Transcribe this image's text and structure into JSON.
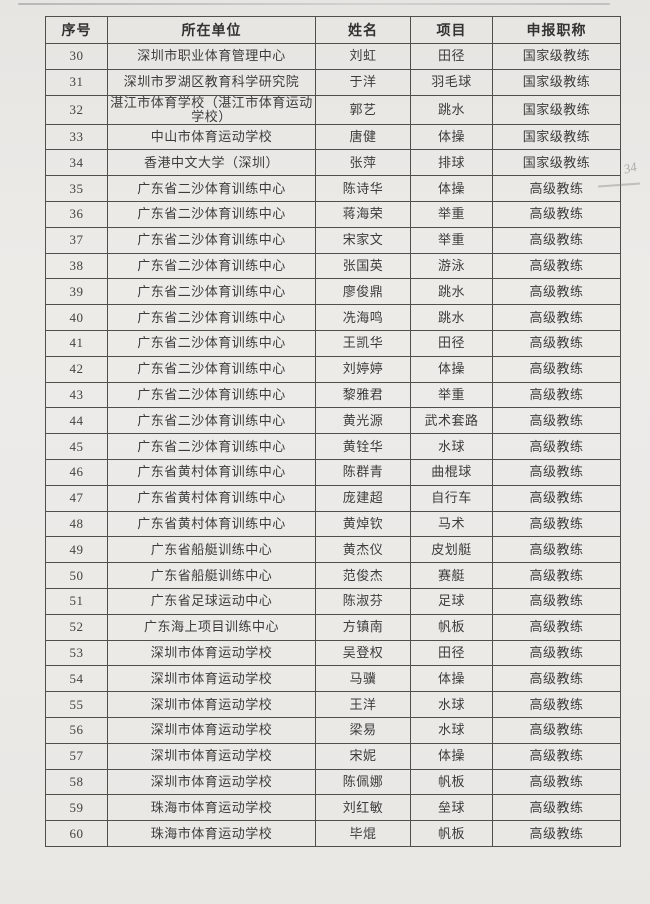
{
  "colors": {
    "paper": "#eae8e5",
    "ink": "#3e3c3a",
    "border": "#514f4c"
  },
  "annotations": {
    "handwritten_mark": "34"
  },
  "table": {
    "columns": [
      {
        "key": "seq",
        "label": "序号"
      },
      {
        "key": "unit",
        "label": "所在单位"
      },
      {
        "key": "name",
        "label": "姓名"
      },
      {
        "key": "sport",
        "label": "项目"
      },
      {
        "key": "title",
        "label": "申报职称"
      }
    ],
    "rows": [
      {
        "seq": "30",
        "unit": "深圳市职业体育管理中心",
        "name": "刘虹",
        "sport": "田径",
        "title": "国家级教练"
      },
      {
        "seq": "31",
        "unit": "深圳市罗湖区教育科学研究院",
        "name": "于洋",
        "sport": "羽毛球",
        "title": "国家级教练"
      },
      {
        "seq": "32",
        "unit": "湛江市体育学校（湛江市体育运动学校）",
        "name": "郭艺",
        "sport": "跳水",
        "title": "国家级教练"
      },
      {
        "seq": "33",
        "unit": "中山市体育运动学校",
        "name": "唐健",
        "sport": "体操",
        "title": "国家级教练"
      },
      {
        "seq": "34",
        "unit": "香港中文大学（深圳）",
        "name": "张萍",
        "sport": "排球",
        "title": "国家级教练"
      },
      {
        "seq": "35",
        "unit": "广东省二沙体育训练中心",
        "name": "陈诗华",
        "sport": "体操",
        "title": "高级教练"
      },
      {
        "seq": "36",
        "unit": "广东省二沙体育训练中心",
        "name": "蒋海荣",
        "sport": "举重",
        "title": "高级教练"
      },
      {
        "seq": "37",
        "unit": "广东省二沙体育训练中心",
        "name": "宋家文",
        "sport": "举重",
        "title": "高级教练"
      },
      {
        "seq": "38",
        "unit": "广东省二沙体育训练中心",
        "name": "张国英",
        "sport": "游泳",
        "title": "高级教练"
      },
      {
        "seq": "39",
        "unit": "广东省二沙体育训练中心",
        "name": "廖俊鼎",
        "sport": "跳水",
        "title": "高级教练"
      },
      {
        "seq": "40",
        "unit": "广东省二沙体育训练中心",
        "name": "冼海鸣",
        "sport": "跳水",
        "title": "高级教练"
      },
      {
        "seq": "41",
        "unit": "广东省二沙体育训练中心",
        "name": "王凯华",
        "sport": "田径",
        "title": "高级教练"
      },
      {
        "seq": "42",
        "unit": "广东省二沙体育训练中心",
        "name": "刘婷婷",
        "sport": "体操",
        "title": "高级教练"
      },
      {
        "seq": "43",
        "unit": "广东省二沙体育训练中心",
        "name": "黎雅君",
        "sport": "举重",
        "title": "高级教练"
      },
      {
        "seq": "44",
        "unit": "广东省二沙体育训练中心",
        "name": "黄光源",
        "sport": "武术套路",
        "title": "高级教练"
      },
      {
        "seq": "45",
        "unit": "广东省二沙体育训练中心",
        "name": "黄铨华",
        "sport": "水球",
        "title": "高级教练"
      },
      {
        "seq": "46",
        "unit": "广东省黄村体育训练中心",
        "name": "陈群青",
        "sport": "曲棍球",
        "title": "高级教练"
      },
      {
        "seq": "47",
        "unit": "广东省黄村体育训练中心",
        "name": "庞建超",
        "sport": "自行车",
        "title": "高级教练"
      },
      {
        "seq": "48",
        "unit": "广东省黄村体育训练中心",
        "name": "黄焯钦",
        "sport": "马术",
        "title": "高级教练"
      },
      {
        "seq": "49",
        "unit": "广东省船艇训练中心",
        "name": "黄杰仪",
        "sport": "皮划艇",
        "title": "高级教练"
      },
      {
        "seq": "50",
        "unit": "广东省船艇训练中心",
        "name": "范俊杰",
        "sport": "赛艇",
        "title": "高级教练"
      },
      {
        "seq": "51",
        "unit": "广东省足球运动中心",
        "name": "陈淑芬",
        "sport": "足球",
        "title": "高级教练"
      },
      {
        "seq": "52",
        "unit": "广东海上项目训练中心",
        "name": "方镇南",
        "sport": "帆板",
        "title": "高级教练"
      },
      {
        "seq": "53",
        "unit": "深圳市体育运动学校",
        "name": "吴登权",
        "sport": "田径",
        "title": "高级教练"
      },
      {
        "seq": "54",
        "unit": "深圳市体育运动学校",
        "name": "马骥",
        "sport": "体操",
        "title": "高级教练"
      },
      {
        "seq": "55",
        "unit": "深圳市体育运动学校",
        "name": "王洋",
        "sport": "水球",
        "title": "高级教练"
      },
      {
        "seq": "56",
        "unit": "深圳市体育运动学校",
        "name": "梁易",
        "sport": "水球",
        "title": "高级教练"
      },
      {
        "seq": "57",
        "unit": "深圳市体育运动学校",
        "name": "宋妮",
        "sport": "体操",
        "title": "高级教练"
      },
      {
        "seq": "58",
        "unit": "深圳市体育运动学校",
        "name": "陈佩娜",
        "sport": "帆板",
        "title": "高级教练"
      },
      {
        "seq": "59",
        "unit": "珠海市体育运动学校",
        "name": "刘红敏",
        "sport": "垒球",
        "title": "高级教练"
      },
      {
        "seq": "60",
        "unit": "珠海市体育运动学校",
        "name": "毕焜",
        "sport": "帆板",
        "title": "高级教练"
      }
    ]
  }
}
